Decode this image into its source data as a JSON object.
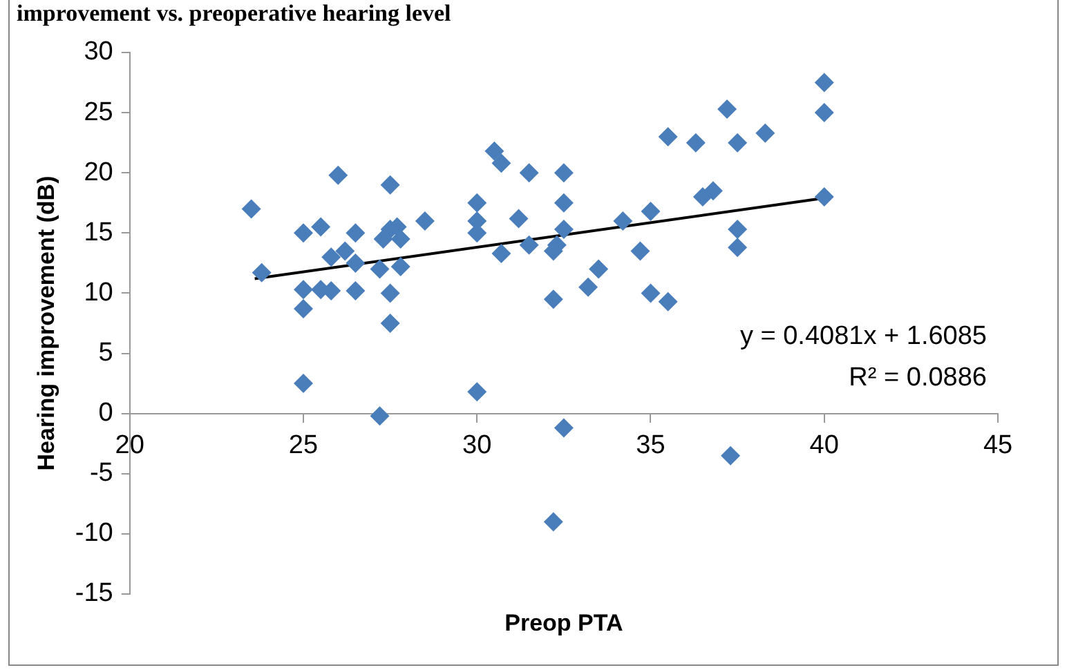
{
  "chart_data": {
    "type": "scatter",
    "title": "improvement vs. preoperative hearing level",
    "xlabel": "Preop PTA",
    "ylabel": "Hearing improvement (dB)",
    "xlim": [
      20,
      45
    ],
    "xticks": [
      20,
      25,
      30,
      35,
      40,
      45
    ],
    "ylim": [
      -15,
      30
    ],
    "yticks": [
      -15,
      -10,
      -5,
      0,
      5,
      10,
      15,
      20,
      25,
      30
    ],
    "grid": false,
    "legend": false,
    "marker": "diamond",
    "series": [
      {
        "type": "scatter",
        "color": "#4a7ebb",
        "x": [
          23.5,
          23.8,
          25,
          25,
          25,
          25,
          25.5,
          25.5,
          25.8,
          25.8,
          26,
          26.2,
          26.5,
          26.5,
          26.5,
          27.2,
          27.2,
          27.3,
          27.5,
          27.5,
          27.5,
          27.5,
          27.7,
          27.8,
          27.8,
          28.5,
          30,
          30,
          30,
          30,
          30.5,
          30.7,
          30.7,
          31.2,
          31.5,
          31.5,
          32.2,
          32.2,
          32.3,
          32.5,
          32.5,
          32.5,
          32.5,
          32.2,
          33.2,
          33.5,
          34.2,
          34.7,
          35,
          35,
          35.5,
          35.5,
          36.3,
          36.5,
          36.8,
          37.2,
          37.3,
          37.5,
          37.5,
          37.5,
          38.3,
          40,
          40,
          40
        ],
        "values": [
          17,
          11.7,
          15,
          10.3,
          8.7,
          2.5,
          15.5,
          10.3,
          13,
          10.2,
          19.8,
          13.5,
          15,
          12.5,
          10.2,
          -0.2,
          12,
          14.5,
          15.3,
          19,
          10,
          7.5,
          15.5,
          12.2,
          14.5,
          16,
          17.5,
          16,
          15,
          1.8,
          21.8,
          20.8,
          13.3,
          16.2,
          20,
          14,
          13.5,
          9.5,
          14,
          20,
          17.5,
          15.3,
          -1.2,
          -9,
          10.5,
          12,
          16,
          13.5,
          16.8,
          10,
          9.3,
          23,
          22.5,
          18,
          18.5,
          25.3,
          -3.5,
          22.5,
          15.3,
          13.8,
          23.3,
          27.5,
          25,
          18
        ]
      },
      {
        "type": "line",
        "color": "#000000",
        "marker": "none",
        "x": [
          23.6,
          40
        ],
        "values": [
          11.2,
          17.9
        ]
      }
    ],
    "annotations": [
      "y = 0.4081x + 1.6085",
      "R² = 0.0886"
    ]
  }
}
